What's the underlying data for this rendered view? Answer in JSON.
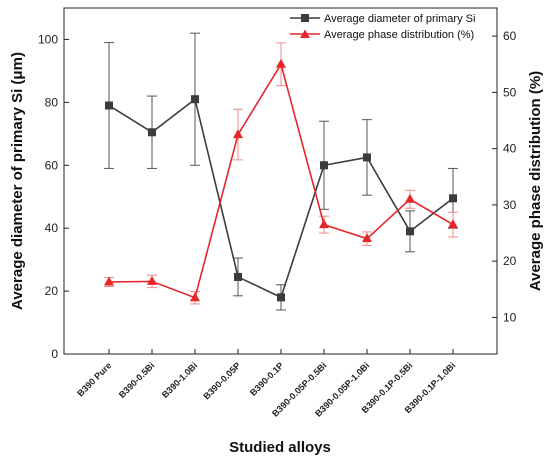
{
  "chart_data": {
    "type": "line",
    "categories": [
      "B390 Pure",
      "B390-0.5Bi",
      "B390-1.0Bi",
      "B390-0.05P",
      "B390-0.1P",
      "B390-0.05P-0.5Bi",
      "B390-0.05P-1.0Bi",
      "B390-0.1P-0.5Bi",
      "B390-0.1P-1.0Bi"
    ],
    "xlabel": "Studied alloys",
    "ylabel_left": "Average diameter of primary Si (μm)",
    "ylabel_right": "Average phase distribution (%)",
    "ylim_left": [
      0,
      110
    ],
    "ylim_right": [
      3.5,
      65
    ],
    "yticks_left": [
      0,
      20,
      40,
      60,
      80,
      100
    ],
    "yticks_right": [
      10,
      20,
      30,
      40,
      50,
      60
    ],
    "legend_position": "top-right",
    "series": [
      {
        "name": "Average diameter of primary Si",
        "axis": "left",
        "marker": "square",
        "color": "#3c3c3c",
        "values": [
          79,
          70.5,
          81,
          24.5,
          18,
          60,
          62.5,
          39,
          49.5
        ],
        "error": [
          20,
          11.5,
          21,
          6,
          4,
          14,
          12,
          6.5,
          9.5
        ]
      },
      {
        "name": "Average phase distribution (%)",
        "axis": "right",
        "marker": "triangle",
        "color": "#e8262a",
        "values": [
          16.3,
          16.4,
          13.5,
          42.5,
          55,
          26.5,
          24,
          31,
          26.5
        ],
        "error": [
          0.8,
          1.1,
          1.1,
          4.5,
          3.8,
          1.5,
          1.2,
          1.6,
          2.2
        ]
      }
    ]
  }
}
